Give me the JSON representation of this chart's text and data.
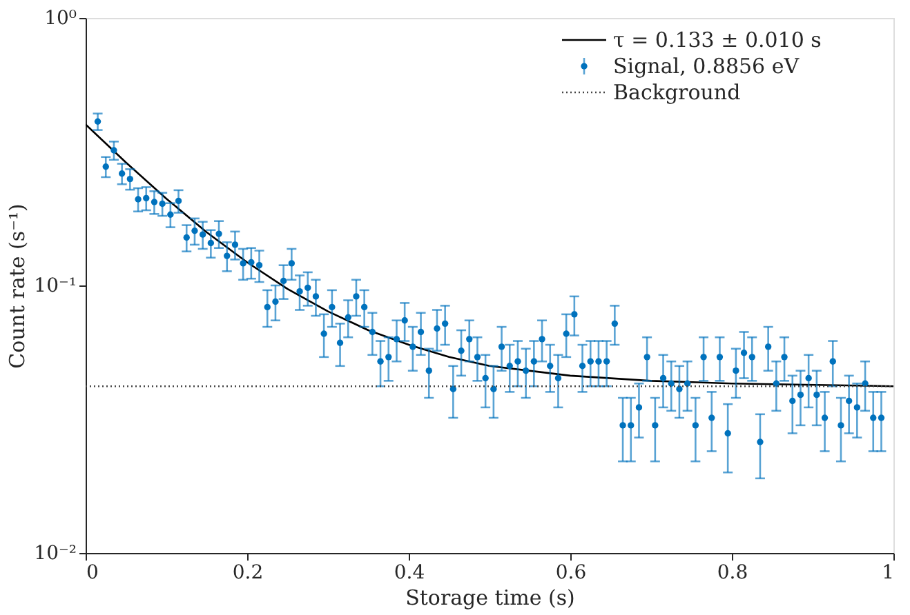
{
  "chart_data": {
    "type": "scatter",
    "xlabel": "Storage time (s)",
    "ylabel": "Count rate (s⁻¹)",
    "xlim": [
      0,
      1
    ],
    "ylim": [
      0.01,
      1
    ],
    "xticks": [
      0,
      0.2,
      0.4,
      0.6,
      0.8,
      1
    ],
    "yticks": [
      {
        "value": 0.01,
        "label": "10⁻²"
      },
      {
        "value": 0.1,
        "label": "10⁻¹"
      },
      {
        "value": 1,
        "label": "10⁰"
      }
    ],
    "log": "y",
    "legend": "top right",
    "series": [
      {
        "name": "τ = 0.133 ± 0.010 s",
        "type": "line",
        "color": "#000000",
        "line_style": "solid",
        "x": [
          0,
          0.05,
          0.1,
          0.15,
          0.2,
          0.25,
          0.3,
          0.35,
          0.4,
          0.45,
          0.5,
          0.6,
          0.7,
          0.8,
          1
        ],
        "values": [
          0.4,
          0.288,
          0.211,
          0.158,
          0.122,
          0.097,
          0.08,
          0.068,
          0.06,
          0.054,
          0.05,
          0.046,
          0.044,
          0.043,
          0.042
        ]
      },
      {
        "name": "Signal, 0.8856 eV",
        "marker": "circle",
        "color": "#0072bd",
        "x": [
          0.015,
          0.025,
          0.035,
          0.045,
          0.055,
          0.065,
          0.075,
          0.085,
          0.095,
          0.105,
          0.115,
          0.125,
          0.135,
          0.145,
          0.155,
          0.165,
          0.175,
          0.185,
          0.195,
          0.205,
          0.215,
          0.225,
          0.235,
          0.245,
          0.255,
          0.265,
          0.275,
          0.285,
          0.295,
          0.305,
          0.315,
          0.325,
          0.335,
          0.345,
          0.355,
          0.365,
          0.375,
          0.385,
          0.395,
          0.405,
          0.415,
          0.425,
          0.435,
          0.445,
          0.455,
          0.465,
          0.475,
          0.485,
          0.495,
          0.505,
          0.515,
          0.525,
          0.535,
          0.545,
          0.555,
          0.565,
          0.575,
          0.585,
          0.595,
          0.605,
          0.615,
          0.625,
          0.635,
          0.645,
          0.655,
          0.665,
          0.675,
          0.685,
          0.695,
          0.705,
          0.715,
          0.725,
          0.735,
          0.745,
          0.755,
          0.765,
          0.775,
          0.785,
          0.795,
          0.805,
          0.815,
          0.825,
          0.835,
          0.845,
          0.855,
          0.865,
          0.875,
          0.885,
          0.895,
          0.905,
          0.915,
          0.925,
          0.935,
          0.945,
          0.955,
          0.965,
          0.975,
          0.985
        ],
        "values": [
          0.41,
          0.278,
          0.32,
          0.262,
          0.25,
          0.21,
          0.212,
          0.205,
          0.202,
          0.184,
          0.207,
          0.151,
          0.16,
          0.155,
          0.144,
          0.156,
          0.129,
          0.142,
          0.121,
          0.122,
          0.119,
          0.083,
          0.087,
          0.104,
          0.121,
          0.095,
          0.098,
          0.091,
          0.066,
          0.083,
          0.061,
          0.076,
          0.091,
          0.083,
          0.067,
          0.052,
          0.054,
          0.063,
          0.074,
          0.059,
          0.067,
          0.048,
          0.069,
          0.072,
          0.041,
          0.057,
          0.063,
          0.054,
          0.045,
          0.041,
          0.059,
          0.05,
          0.052,
          0.048,
          0.052,
          0.063,
          0.05,
          0.045,
          0.066,
          0.078,
          0.05,
          0.052,
          0.052,
          0.052,
          0.072,
          0.03,
          0.03,
          0.035,
          0.054,
          0.03,
          0.045,
          0.043,
          0.041,
          0.043,
          0.03,
          0.054,
          0.032,
          0.054,
          0.028,
          0.048,
          0.056,
          0.054,
          0.026,
          0.059,
          0.043,
          0.054,
          0.037,
          0.039,
          0.045,
          0.039,
          0.032,
          0.052,
          0.03,
          0.037,
          0.035,
          0.043,
          0.032,
          0.032
        ],
        "errors": [
          0.029,
          0.024,
          0.025,
          0.023,
          0.022,
          0.021,
          0.021,
          0.02,
          0.02,
          0.019,
          0.02,
          0.017,
          0.018,
          0.018,
          0.017,
          0.018,
          0.016,
          0.017,
          0.016,
          0.016,
          0.016,
          0.013,
          0.013,
          0.015,
          0.016,
          0.014,
          0.014,
          0.014,
          0.012,
          0.013,
          0.011,
          0.012,
          0.014,
          0.013,
          0.012,
          0.01,
          0.01,
          0.011,
          0.012,
          0.011,
          0.012,
          0.01,
          0.012,
          0.012,
          0.009,
          0.011,
          0.011,
          0.01,
          0.01,
          0.009,
          0.011,
          0.01,
          0.01,
          0.01,
          0.01,
          0.011,
          0.01,
          0.01,
          0.012,
          0.013,
          0.01,
          0.01,
          0.01,
          0.01,
          0.012,
          0.008,
          0.008,
          0.008,
          0.01,
          0.008,
          0.01,
          0.009,
          0.009,
          0.009,
          0.008,
          0.01,
          0.008,
          0.01,
          0.008,
          0.01,
          0.011,
          0.01,
          0.007,
          0.011,
          0.009,
          0.01,
          0.009,
          0.009,
          0.01,
          0.009,
          0.008,
          0.01,
          0.008,
          0.009,
          0.008,
          0.009,
          0.008,
          0.008
        ]
      },
      {
        "name": "Background",
        "type": "line",
        "color": "#444444",
        "line_style": "dotted",
        "x": [
          0,
          0.1,
          0.2,
          0.3,
          0.4,
          0.5,
          0.6,
          0.7,
          0.8,
          0.9,
          1
        ],
        "values": [
          0.042,
          0.042,
          0.042,
          0.042,
          0.042,
          0.042,
          0.042,
          0.042,
          0.042,
          0.042,
          0.042
        ]
      }
    ]
  }
}
